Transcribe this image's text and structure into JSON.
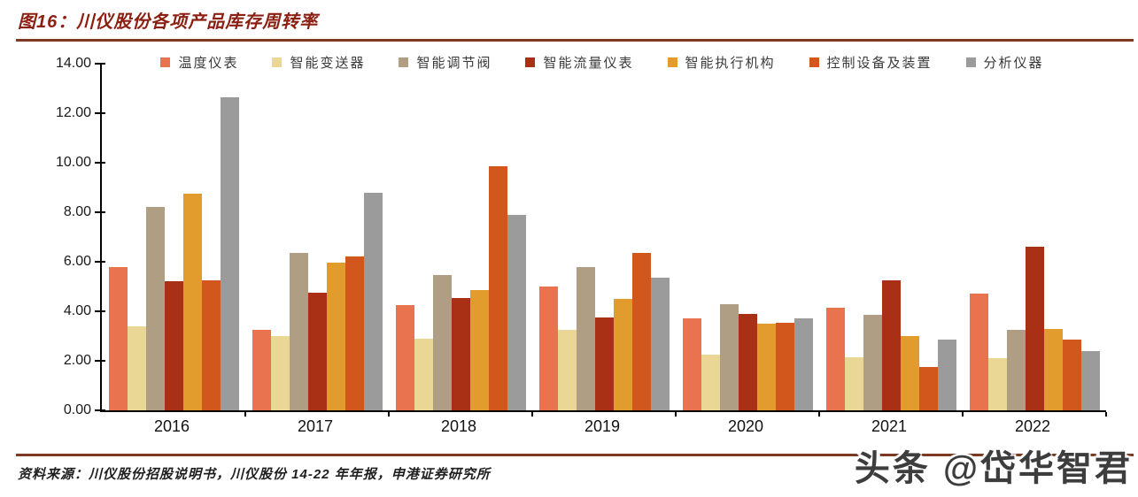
{
  "header": {
    "title": "图16：川仪股份各项产品库存周转率",
    "accent_color": "#8B1F12",
    "rule_color": "#7C3A22"
  },
  "chart_data": {
    "type": "bar",
    "title": "川仪股份各项产品库存周转率",
    "categories": [
      "2016",
      "2017",
      "2018",
      "2019",
      "2020",
      "2021",
      "2022"
    ],
    "series": [
      {
        "name": "温度仪表",
        "color": "#E8734E",
        "values": [
          5.8,
          3.25,
          4.25,
          5.0,
          3.7,
          4.15,
          4.7
        ]
      },
      {
        "name": "智能变送器",
        "color": "#EAD795",
        "values": [
          3.4,
          3.0,
          2.9,
          3.25,
          2.25,
          2.15,
          2.1
        ]
      },
      {
        "name": "智能调节阀",
        "color": "#AF9D84",
        "values": [
          8.2,
          6.35,
          5.45,
          5.8,
          4.3,
          3.85,
          3.25
        ]
      },
      {
        "name": "智能流量仪表",
        "color": "#A93015",
        "values": [
          5.2,
          4.75,
          4.55,
          3.75,
          3.9,
          5.25,
          6.6
        ]
      },
      {
        "name": "智能执行机构",
        "color": "#E29C2E",
        "values": [
          8.75,
          5.95,
          4.85,
          4.5,
          3.5,
          3.0,
          3.3
        ]
      },
      {
        "name": "控制设备及装置",
        "color": "#D2571C",
        "values": [
          5.25,
          6.2,
          9.85,
          6.35,
          3.55,
          1.75,
          2.85
        ]
      },
      {
        "name": "分析仪器",
        "color": "#9C9B9C",
        "values": [
          12.65,
          8.8,
          7.9,
          5.35,
          3.7,
          2.85,
          2.4
        ]
      }
    ],
    "xlabel": "",
    "ylabel": "",
    "ylim": [
      0,
      14
    ],
    "y_tick_step": 2,
    "y_tick_labels": [
      "0.00",
      "2.00",
      "4.00",
      "6.00",
      "8.00",
      "10.00",
      "12.00",
      "14.00"
    ],
    "grid": false,
    "legend_position": "top",
    "axis_color": "#000000"
  },
  "footer": {
    "source": "资料来源：川仪股份招股说明书，川仪股份 14-22 年年报，申港证券研究所",
    "watermark": "头条 @岱华智君"
  }
}
